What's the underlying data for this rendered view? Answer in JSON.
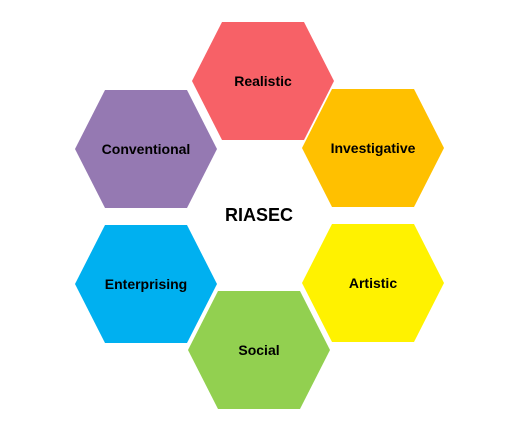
{
  "diagram": {
    "center": "RIASEC",
    "hexagons": [
      {
        "label": "Realistic",
        "color": "#f76167"
      },
      {
        "label": "Investigative",
        "color": "#ffc000"
      },
      {
        "label": "Artistic",
        "color": "#fff200"
      },
      {
        "label": "Social",
        "color": "#92d050"
      },
      {
        "label": "Enterprising",
        "color": "#00b0f0"
      },
      {
        "label": "Conventional",
        "color": "#9579b2"
      }
    ]
  }
}
